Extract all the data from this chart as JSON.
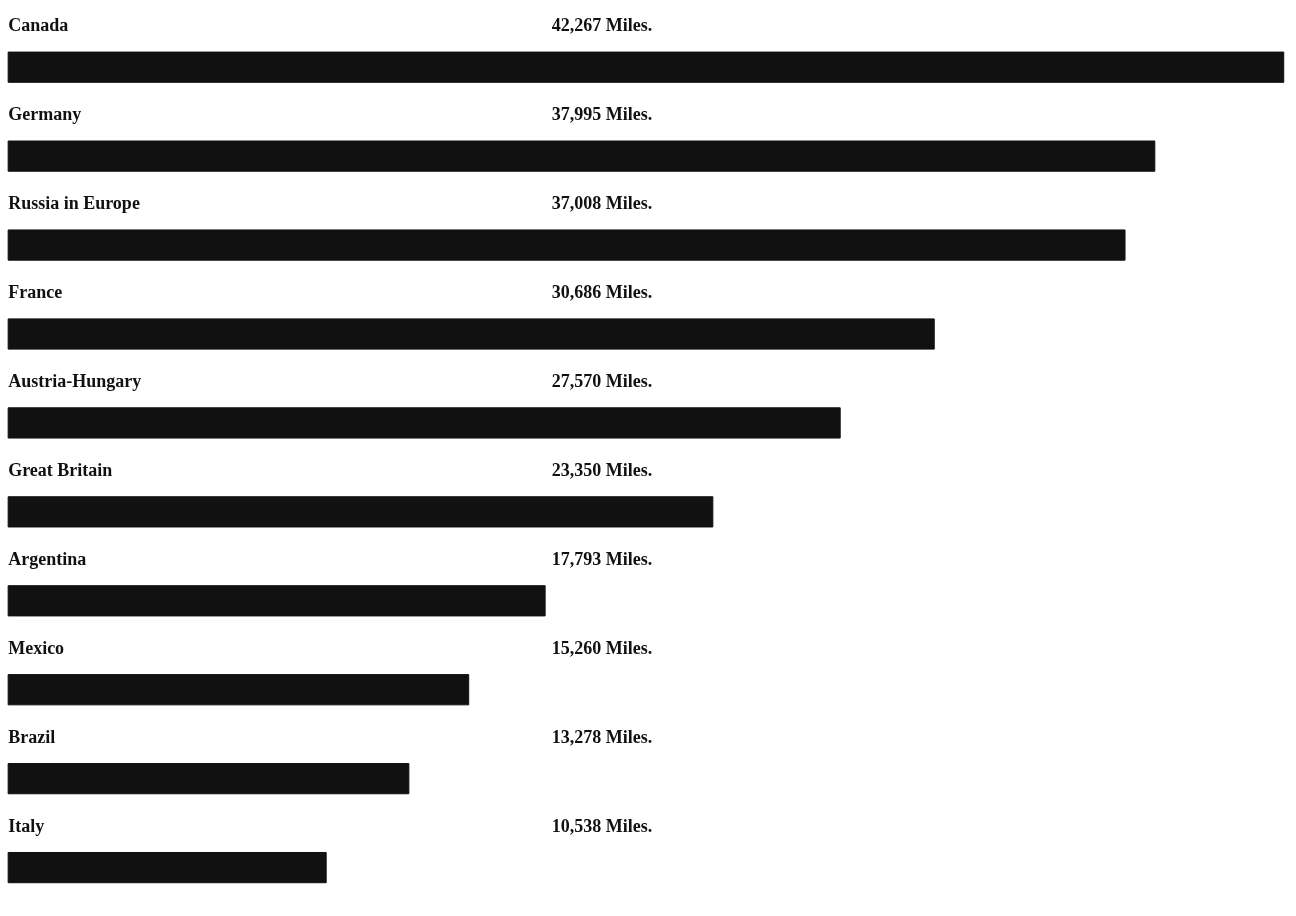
{
  "chart_data": {
    "type": "bar",
    "orientation": "horizontal",
    "categories": [
      "Canada",
      "Germany",
      "Russia in Europe",
      "France",
      "Austria-Hungary",
      "Great Britain",
      "Argentina",
      "Mexico",
      "Brazil",
      "Italy"
    ],
    "values": [
      42267,
      37995,
      37008,
      30686,
      27570,
      23350,
      17793,
      15260,
      13278,
      10538
    ],
    "value_labels": [
      "42,267 Miles.",
      "37,995 Miles.",
      "37,008 Miles.",
      "30,686 Miles.",
      "27,570 Miles.",
      "23,350 Miles.",
      "17,793 Miles.",
      "15,260 Miles.",
      "13,278 Miles.",
      "10,538 Miles."
    ],
    "color": "#111111"
  }
}
